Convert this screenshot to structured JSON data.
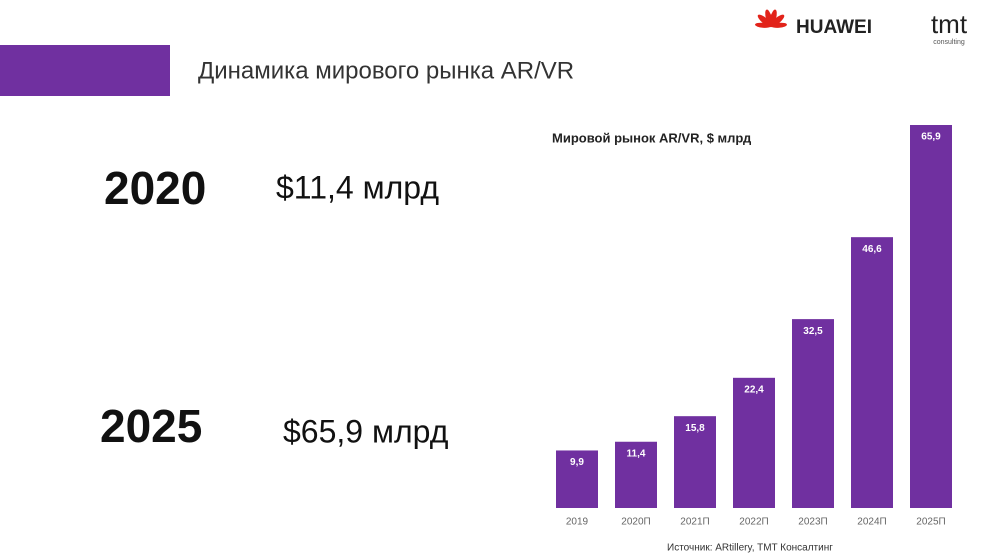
{
  "header": {
    "title": "Динамика мирового рынка AR/VR",
    "logo_left": "HUAWEI",
    "logo_right": "tmt",
    "logo_right_sub": "consulting"
  },
  "highlights": [
    {
      "year": "2020",
      "amount": "$11,4 млрд"
    },
    {
      "year": "2025",
      "amount": "$65,9 млрд"
    }
  ],
  "chart_data": {
    "type": "bar",
    "title": "Мировой рынок AR/VR, $ млрд",
    "categories": [
      "2019",
      "2020П",
      "2021П",
      "2022П",
      "2023П",
      "2024П",
      "2025П"
    ],
    "values": [
      9.9,
      11.4,
      15.8,
      22.4,
      32.5,
      46.6,
      65.9
    ],
    "value_labels": [
      "9,9",
      "11,4",
      "15,8",
      "22,4",
      "32,5",
      "46,6",
      "65,9"
    ],
    "color": "#7030a0"
  },
  "source": "Источник: ARtillery, TMT Консалтинг"
}
